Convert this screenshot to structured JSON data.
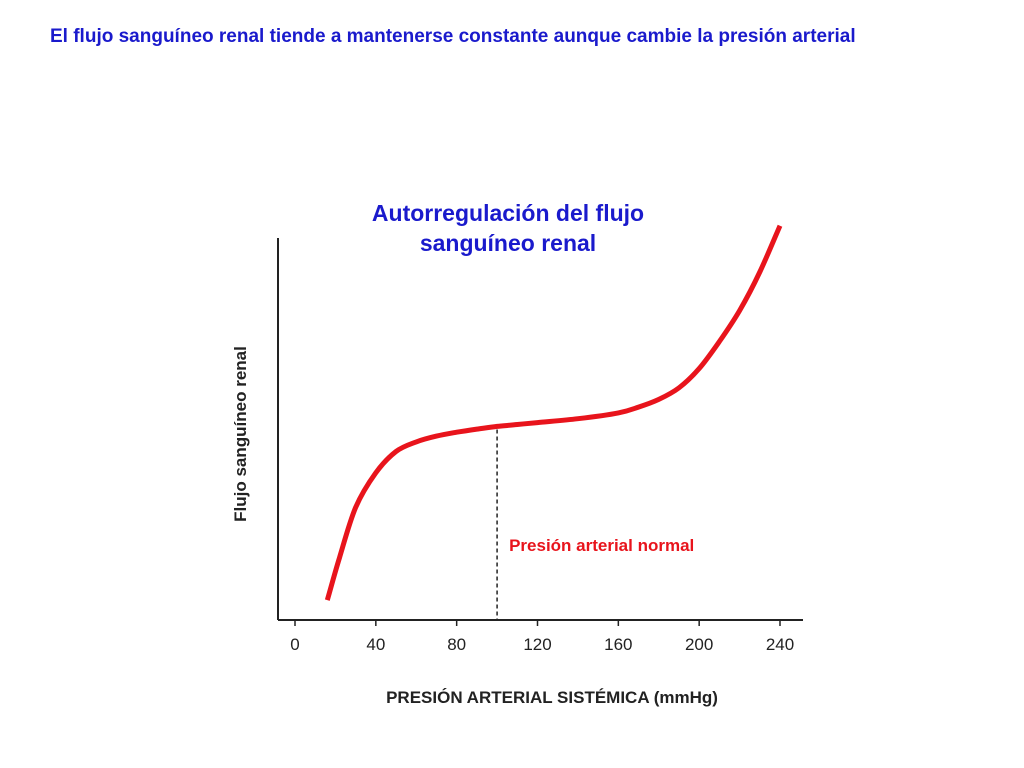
{
  "slide": {
    "heading": "El flujo sanguíneo renal tiende a mantenerse constante aunque cambie la presión arterial"
  },
  "colors": {
    "heading": "#1a1acc",
    "title": "#1a1acc",
    "curve": "#e8141c",
    "annotation": "#e8141c",
    "axis": "#222222"
  },
  "chart_data": {
    "type": "line",
    "title_lines": [
      "Autorregulación del flujo",
      "sanguíneo renal"
    ],
    "xlabel": "PRESIÓN ARTERIAL SISTÉMICA (mmHg)",
    "ylabel": "Flujo sanguíneo renal",
    "xlim": [
      0,
      240
    ],
    "ylim": [
      0,
      100
    ],
    "x_ticks": [
      0,
      40,
      80,
      120,
      160,
      200,
      240
    ],
    "y_ticks_shown": false,
    "grid": false,
    "legend": "none",
    "series": [
      {
        "x": [
          16,
          22,
          30,
          40,
          50,
          60,
          70,
          80,
          90,
          100,
          110,
          120,
          140,
          160,
          170,
          180,
          190,
          200,
          210,
          220,
          230,
          240
        ],
        "y": [
          1,
          12,
          25,
          34,
          39.5,
          42,
          43.5,
          44.5,
          45.3,
          46,
          46.5,
          47,
          48,
          49.5,
          51,
          53,
          56,
          61,
          68,
          76,
          86,
          98
        ]
      }
    ],
    "annotations": [
      {
        "text": "Presión arterial normal",
        "x": 100,
        "style": "dashed-vertical-line"
      }
    ]
  }
}
